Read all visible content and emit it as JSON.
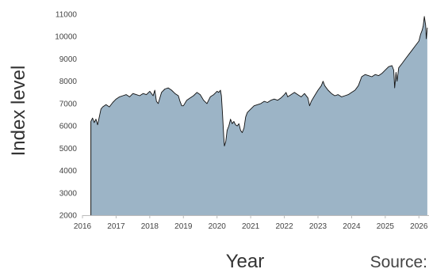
{
  "chart_data": {
    "type": "area",
    "title": "",
    "xlabel": "Year",
    "ylabel": "Index level",
    "source_label": "Source:",
    "xlim": [
      2016,
      2026.3
    ],
    "ylim": [
      2000,
      11000
    ],
    "x_ticks": [
      2016,
      2017,
      2018,
      2019,
      2020,
      2021,
      2022,
      2023,
      2024,
      2025,
      2026
    ],
    "x_tick_labels": [
      "2016",
      "2017",
      "2018",
      "2019",
      "2020",
      "2021",
      "2022",
      "2023",
      "2024",
      "2025",
      "2026"
    ],
    "y_ticks": [
      2000,
      3000,
      4000,
      5000,
      6000,
      7000,
      8000,
      9000,
      10000,
      11000
    ],
    "y_tick_labels": [
      "2000",
      "3000",
      "4000",
      "5000",
      "6000",
      "7000",
      "8000",
      "9000",
      "10000",
      "11000"
    ],
    "grid": false,
    "legend": "none",
    "colors": {
      "fill": "#9cb4c6",
      "line": "#111111",
      "axis": "#bbbbbb"
    },
    "series": [
      {
        "x": [
          2016.25,
          2016.3,
          2016.35,
          2016.4,
          2016.45,
          2016.5,
          2016.55,
          2016.6,
          2016.7,
          2016.8,
          2016.9,
          2017.0,
          2017.1,
          2017.2,
          2017.3,
          2017.4,
          2017.5,
          2017.6,
          2017.7,
          2017.8,
          2017.9,
          2018.0,
          2018.1,
          2018.15,
          2018.2,
          2018.25,
          2018.35,
          2018.45,
          2018.55,
          2018.65,
          2018.75,
          2018.85,
          2018.9,
          2018.95,
          2019.0,
          2019.1,
          2019.2,
          2019.3,
          2019.4,
          2019.5,
          2019.6,
          2019.7,
          2019.8,
          2019.9,
          2020.0,
          2020.05,
          2020.1,
          2020.13,
          2020.16,
          2020.2,
          2020.22,
          2020.26,
          2020.3,
          2020.35,
          2020.4,
          2020.45,
          2020.5,
          2020.55,
          2020.6,
          2020.65,
          2020.7,
          2020.75,
          2020.8,
          2020.85,
          2020.9,
          2021.0,
          2021.1,
          2021.2,
          2021.3,
          2021.4,
          2021.5,
          2021.6,
          2021.7,
          2021.8,
          2021.9,
          2022.0,
          2022.05,
          2022.1,
          2022.2,
          2022.3,
          2022.4,
          2022.5,
          2022.6,
          2022.7,
          2022.75,
          2022.8,
          2022.9,
          2023.0,
          2023.1,
          2023.15,
          2023.2,
          2023.3,
          2023.4,
          2023.5,
          2023.6,
          2023.7,
          2023.8,
          2023.9,
          2024.0,
          2024.1,
          2024.2,
          2024.25,
          2024.3,
          2024.4,
          2024.5,
          2024.6,
          2024.7,
          2024.8,
          2024.9,
          2025.0,
          2025.1,
          2025.2,
          2025.25,
          2025.28,
          2025.32,
          2025.35,
          2025.4,
          2025.5,
          2025.6,
          2025.7,
          2025.8,
          2025.9,
          2026.0,
          2026.05,
          2026.1,
          2026.13,
          2026.16,
          2026.2,
          2026.22,
          2026.25
        ],
        "y": [
          6200,
          6350,
          6150,
          6300,
          6050,
          6400,
          6750,
          6850,
          6950,
          6850,
          7050,
          7200,
          7300,
          7350,
          7400,
          7300,
          7450,
          7400,
          7350,
          7450,
          7400,
          7550,
          7350,
          7600,
          7100,
          7000,
          7500,
          7650,
          7700,
          7600,
          7450,
          7350,
          7100,
          6900,
          6900,
          7150,
          7250,
          7350,
          7500,
          7400,
          7150,
          7000,
          7300,
          7400,
          7550,
          7500,
          7600,
          7350,
          6600,
          5500,
          5100,
          5300,
          5800,
          6000,
          6300,
          6100,
          6200,
          6050,
          6000,
          6100,
          5800,
          5700,
          5900,
          6400,
          6600,
          6750,
          6900,
          6950,
          7000,
          7100,
          7050,
          7150,
          7200,
          7150,
          7250,
          7400,
          7500,
          7300,
          7400,
          7500,
          7400,
          7300,
          7450,
          7250,
          6900,
          7100,
          7350,
          7600,
          7800,
          8000,
          7800,
          7600,
          7450,
          7350,
          7400,
          7300,
          7350,
          7400,
          7500,
          7600,
          7800,
          8000,
          8200,
          8300,
          8250,
          8200,
          8300,
          8250,
          8350,
          8500,
          8650,
          8700,
          8500,
          7700,
          8400,
          8000,
          8600,
          8800,
          9000,
          9200,
          9400,
          9600,
          9800,
          10100,
          10300,
          10500,
          10900,
          10500,
          9900,
          10400
        ]
      }
    ]
  }
}
